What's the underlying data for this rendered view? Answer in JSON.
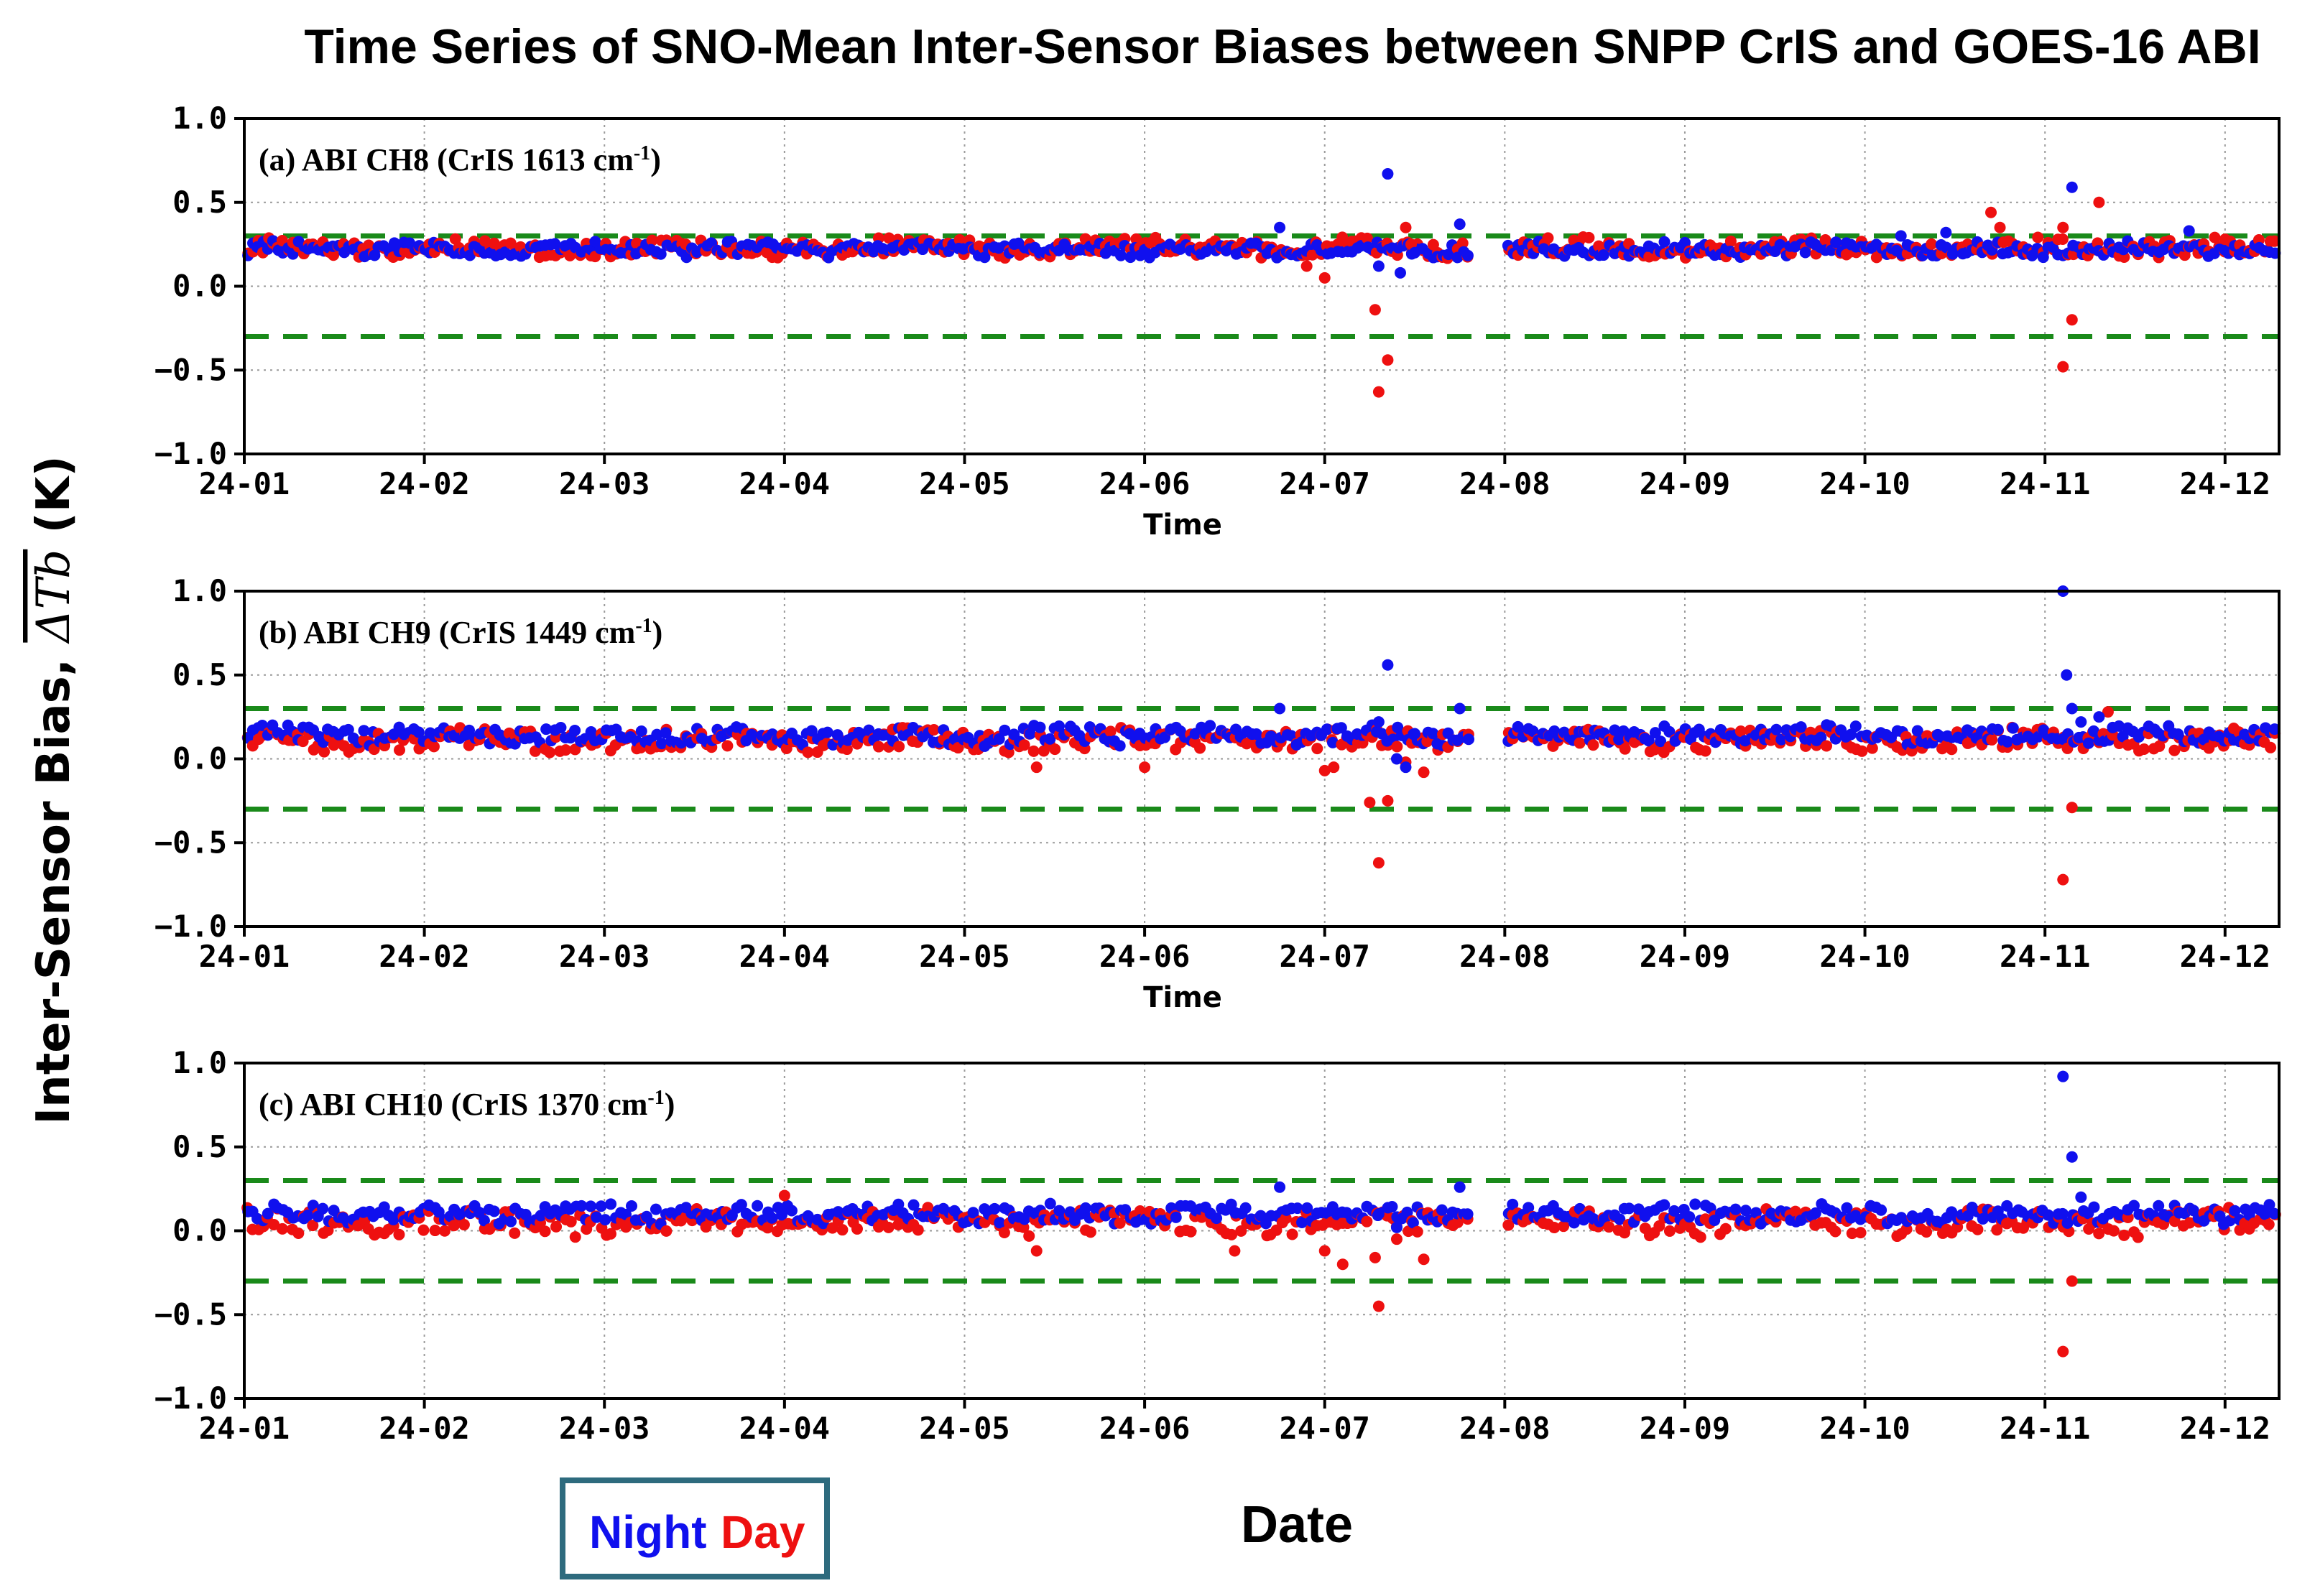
{
  "title": "Time Series of SNO-Mean Inter-Sensor Biases between SNPP CrIS and GOES-16 ABI",
  "ylabel": "Inter-Sensor Bias, ",
  "ylabel_math": "ΔTb",
  "xlabel_common": "Date",
  "legend": {
    "night": "Night",
    "day": "Day"
  },
  "colors": {
    "night": "#1010ee",
    "day": "#ee1010",
    "threshold": "#1a8a1a",
    "legend_border": "#2e6b7e"
  },
  "chart_data": [
    {
      "type": "scatter",
      "panel_label": "(a) ABI CH8 (CrIS 1613 cm",
      "label_sup": "-1",
      "xlabel": "Time",
      "ylim": [
        -1.0,
        1.0
      ],
      "xlim": [
        0,
        11.3
      ],
      "yticks": [
        "1.0",
        "0.5",
        "0.0",
        "−0.5",
        "−1.0"
      ],
      "xticks": [
        "24-01",
        "24-02",
        "24-03",
        "24-04",
        "24-05",
        "24-06",
        "24-07",
        "24-08",
        "24-09",
        "24-10",
        "24-11",
        "24-12"
      ],
      "thresholds": [
        0.3,
        -0.3
      ],
      "base_night": 0.22,
      "base_day": 0.23,
      "amp_night": 0.04,
      "amp_day": 0.05,
      "outliers_night": [
        [
          5.75,
          0.35
        ],
        [
          6.35,
          0.67
        ],
        [
          6.3,
          0.12
        ],
        [
          6.42,
          0.08
        ],
        [
          6.5,
          0.2
        ],
        [
          6.75,
          0.37
        ],
        [
          9.2,
          0.3
        ],
        [
          9.45,
          0.32
        ],
        [
          10.15,
          0.59
        ],
        [
          10.8,
          0.33
        ]
      ],
      "outliers_day": [
        [
          5.9,
          0.12
        ],
        [
          6.0,
          0.05
        ],
        [
          6.28,
          -0.14
        ],
        [
          6.3,
          -0.63
        ],
        [
          6.35,
          -0.44
        ],
        [
          6.45,
          0.35
        ],
        [
          6.48,
          0.25
        ],
        [
          10.1,
          0.35
        ],
        [
          10.15,
          -0.2
        ],
        [
          10.1,
          -0.48
        ],
        [
          10.3,
          0.5
        ],
        [
          9.7,
          0.44
        ],
        [
          9.75,
          0.35
        ],
        [
          11.0,
          0.28
        ]
      ],
      "gap": [
        6.8,
        7.0
      ]
    },
    {
      "type": "scatter",
      "panel_label": "(b) ABI CH9 (CrIS 1449 cm",
      "label_sup": "-1",
      "xlabel": "Time",
      "ylim": [
        -1.0,
        1.0
      ],
      "xlim": [
        0,
        11.3
      ],
      "yticks": [
        "1.0",
        "0.5",
        "0.0",
        "−0.5",
        "−1.0"
      ],
      "xticks": [
        "24-01",
        "24-02",
        "24-03",
        "24-04",
        "24-05",
        "24-06",
        "24-07",
        "24-08",
        "24-09",
        "24-10",
        "24-11",
        "24-12"
      ],
      "thresholds": [
        0.3,
        -0.3
      ],
      "base_night": 0.14,
      "base_day": 0.11,
      "amp_night": 0.05,
      "amp_day": 0.06,
      "outliers_night": [
        [
          6.35,
          0.56
        ],
        [
          6.3,
          0.22
        ],
        [
          6.4,
          0.0
        ],
        [
          6.45,
          -0.05
        ],
        [
          6.5,
          0.15
        ],
        [
          6.75,
          0.3
        ],
        [
          5.75,
          0.3
        ],
        [
          10.1,
          1.0
        ],
        [
          10.12,
          0.5
        ],
        [
          10.2,
          0.22
        ],
        [
          10.3,
          0.25
        ],
        [
          10.15,
          0.3
        ]
      ],
      "outliers_day": [
        [
          4.4,
          -0.05
        ],
        [
          5.0,
          -0.05
        ],
        [
          6.0,
          -0.07
        ],
        [
          6.25,
          -0.26
        ],
        [
          6.3,
          -0.62
        ],
        [
          6.35,
          -0.25
        ],
        [
          6.05,
          -0.05
        ],
        [
          6.45,
          -0.02
        ],
        [
          6.55,
          -0.08
        ],
        [
          10.1,
          -0.72
        ],
        [
          10.15,
          -0.29
        ],
        [
          10.35,
          0.28
        ]
      ],
      "gap": [
        6.8,
        7.0
      ]
    },
    {
      "type": "scatter",
      "panel_label": "(c) ABI CH10 (CrIS 1370 cm",
      "label_sup": "-1",
      "xlabel": "",
      "ylim": [
        -1.0,
        1.0
      ],
      "xlim": [
        0,
        11.3
      ],
      "yticks": [
        "1.0",
        "0.5",
        "0.0",
        "−0.5",
        "−1.0"
      ],
      "xticks": [
        "24-01",
        "24-02",
        "24-03",
        "24-04",
        "24-05",
        "24-06",
        "24-07",
        "24-08",
        "24-09",
        "24-10",
        "24-11",
        "24-12"
      ],
      "thresholds": [
        0.3,
        -0.3
      ],
      "base_night": 0.1,
      "base_day": 0.05,
      "amp_night": 0.05,
      "amp_day": 0.07,
      "outliers_night": [
        [
          10.1,
          0.92
        ],
        [
          10.15,
          0.44
        ],
        [
          10.2,
          0.2
        ],
        [
          5.75,
          0.26
        ],
        [
          6.75,
          0.26
        ],
        [
          6.3,
          0.1
        ],
        [
          6.4,
          0.02
        ]
      ],
      "outliers_day": [
        [
          6.0,
          -0.12
        ],
        [
          6.28,
          -0.16
        ],
        [
          6.3,
          -0.45
        ],
        [
          6.4,
          -0.05
        ],
        [
          6.55,
          -0.17
        ],
        [
          6.1,
          -0.2
        ],
        [
          4.4,
          -0.12
        ],
        [
          5.5,
          -0.12
        ],
        [
          10.1,
          -0.72
        ],
        [
          10.15,
          -0.3
        ],
        [
          3.0,
          0.21
        ]
      ],
      "gap": [
        6.8,
        7.0
      ]
    }
  ]
}
